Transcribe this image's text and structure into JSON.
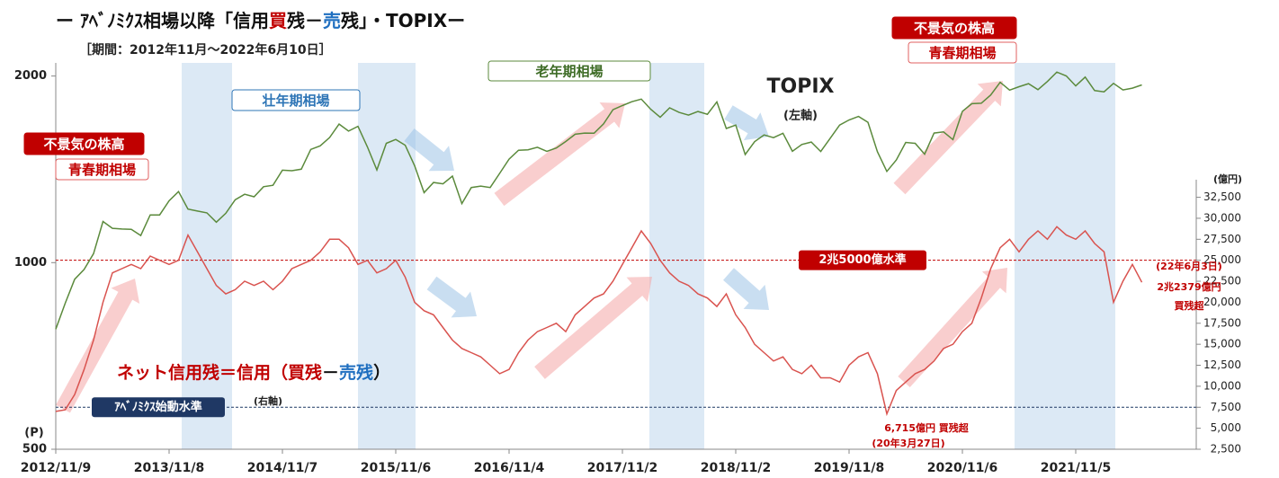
{
  "chart_data": {
    "type": "line",
    "title_parts": [
      {
        "text": "ー ｱﾍﾞﾉﾐｸｽ相場以降「信用",
        "color": "#111"
      },
      {
        "text": "買",
        "color": "#c00000"
      },
      {
        "text": "残－",
        "color": "#111"
      },
      {
        "text": "売",
        "color": "#1f6fc0"
      },
      {
        "text": "残」・TOPIXー",
        "color": "#111"
      }
    ],
    "subtitle": "［期間：2012年11月～2022年6月10日］",
    "categories": [
      "2012/11/9",
      null,
      null,
      null,
      null,
      null,
      null,
      null,
      null,
      null,
      null,
      null,
      "2013/11/8",
      null,
      null,
      null,
      null,
      null,
      null,
      null,
      null,
      null,
      null,
      null,
      "2014/11/7",
      null,
      null,
      null,
      null,
      null,
      null,
      null,
      null,
      null,
      null,
      null,
      "2015/11/6",
      null,
      null,
      null,
      null,
      null,
      null,
      null,
      null,
      null,
      null,
      null,
      "2016/11/4",
      null,
      null,
      null,
      null,
      null,
      null,
      null,
      null,
      null,
      null,
      null,
      "2017/11/2",
      null,
      null,
      null,
      null,
      null,
      null,
      null,
      null,
      null,
      null,
      null,
      "2018/11/2",
      null,
      null,
      null,
      null,
      null,
      null,
      null,
      null,
      null,
      null,
      null,
      "2019/11/8",
      null,
      null,
      null,
      null,
      null,
      null,
      null,
      null,
      null,
      null,
      null,
      "2020/11/6",
      null,
      null,
      null,
      null,
      null,
      null,
      null,
      null,
      null,
      null,
      null,
      "2021/11/5",
      null,
      null,
      null,
      null,
      null,
      null,
      null
    ],
    "series": [
      {
        "name": "TOPIX",
        "color": "#5b8a3c",
        "values": [
          781,
          860,
          940,
          975,
          1034,
          1165,
          1136,
          1133,
          1132,
          1106,
          1194,
          1194,
          1258,
          1302,
          1220,
          1211,
          1203,
          1162,
          1201,
          1263,
          1289,
          1277,
          1326,
          1333,
          1410,
          1407,
          1415,
          1523,
          1543,
          1592,
          1673,
          1630,
          1659,
          1537,
          1411,
          1558,
          1580,
          1547,
          1433,
          1297,
          1347,
          1340,
          1379,
          1245,
          1322,
          1329,
          1322,
          1393,
          1469,
          1518,
          1521,
          1535,
          1512,
          1531,
          1568,
          1611,
          1618,
          1617,
          1674,
          1765,
          1792,
          1818,
          1836,
          1768,
          1716,
          1777,
          1747,
          1730,
          1753,
          1735,
          1817,
          1646,
          1667,
          1494,
          1567,
          1607,
          1591,
          1617,
          1512,
          1551,
          1565,
          1511,
          1587,
          1667,
          1699,
          1721,
          1684,
          1510,
          1403,
          1464,
          1563,
          1558,
          1496,
          1618,
          1625,
          1579,
          1754,
          1805,
          1808,
          1864,
          1954,
          1898,
          1922,
          1944,
          1901,
          1960,
          2030,
          2001,
          1928,
          1992,
          1895,
          1886,
          1946,
          1899,
          1912,
          1935
        ]
      },
      {
        "color": "#d9534f",
        "axis": "y2",
        "values": [
          7000,
          7200,
          9000,
          12000,
          15500,
          20000,
          23500,
          24000,
          24500,
          24000,
          25500,
          25000,
          24500,
          25000,
          28000,
          26000,
          24000,
          22000,
          21000,
          21500,
          22500,
          22000,
          22500,
          21500,
          22500,
          24000,
          24500,
          25000,
          26000,
          27500,
          27500,
          26500,
          24500,
          25000,
          23500,
          24000,
          25000,
          23000,
          20000,
          19000,
          18500,
          17000,
          15500,
          14500,
          14000,
          13500,
          12500,
          11500,
          12000,
          14000,
          15500,
          16500,
          17000,
          17500,
          16500,
          18500,
          19500,
          20500,
          21000,
          22500,
          24500,
          26500,
          28500,
          27000,
          25000,
          23500,
          22500,
          22000,
          21000,
          20500,
          19500,
          21000,
          18500,
          17000,
          15000,
          14000,
          13000,
          13500,
          12000,
          11500,
          12500,
          11000,
          11000,
          10500,
          12500,
          13500,
          14000,
          11500,
          6715,
          9500,
          10500,
          11500,
          12000,
          13000,
          14500,
          15000,
          16500,
          17500,
          20500,
          24000,
          26500,
          27500,
          26000,
          27500,
          28500,
          27500,
          29000,
          28000,
          27500,
          28500,
          27000,
          26000,
          20000,
          22500,
          24500,
          22379
        ]
      }
    ],
    "ylim": [
      500,
      2100
    ],
    "yscale": "log",
    "yticks": [
      500,
      1000,
      2000
    ],
    "ylabel": "(P)",
    "y2lim": [
      2500,
      48500
    ],
    "y2label": "(億円)",
    "y2ticks": [
      {
        "value": 2500,
        "label": "2,500"
      },
      {
        "value": 5000,
        "label": "5,000"
      },
      {
        "value": 7500,
        "label": "7,500"
      },
      {
        "value": 10000,
        "label": "10,000"
      },
      {
        "value": 12500,
        "label": "12,500"
      },
      {
        "value": 15000,
        "label": "15,000"
      },
      {
        "value": 17500,
        "label": "17,500"
      },
      {
        "value": 20000,
        "label": "20,000"
      },
      {
        "value": 22500,
        "label": "22,500"
      },
      {
        "value": 25000,
        "label": "25,000"
      },
      {
        "value": 27500,
        "label": "27,500"
      },
      {
        "value": 30000,
        "label": "30,000"
      },
      {
        "value": 32500,
        "label": "32,500"
      }
    ],
    "reference_lines": [
      {
        "value": 25000,
        "label": "2兆5000億水準",
        "color": "#c00000"
      },
      {
        "value": 7500,
        "label": "ｱﾍﾞﾉﾐｸｽ始動水準",
        "color": "#1f3864"
      }
    ],
    "net_label_parts": [
      {
        "text": "ネット信用残＝信用（",
        "color": "#c00000"
      },
      {
        "text": "買残",
        "color": "#c00000"
      },
      {
        "text": "－",
        "color": "#111"
      },
      {
        "text": "売残",
        "color": "#1f6fc0"
      },
      {
        "text": "）",
        "color": "#111"
      }
    ],
    "labels": {
      "topix_axis": "(左軸)",
      "net_axis": "(右軸)",
      "boom1": "不景気の株高",
      "youth1": "青春期相場",
      "boom2": "不景気の株高",
      "youth2": "青春期相場",
      "prime": "壮年期相場",
      "old": "老年期相場"
    },
    "annotations": [
      "6,715億円 買残超",
      "(20年3月27日)",
      "(22年6月3日)",
      "2兆2379億円",
      "買残超"
    ]
  }
}
